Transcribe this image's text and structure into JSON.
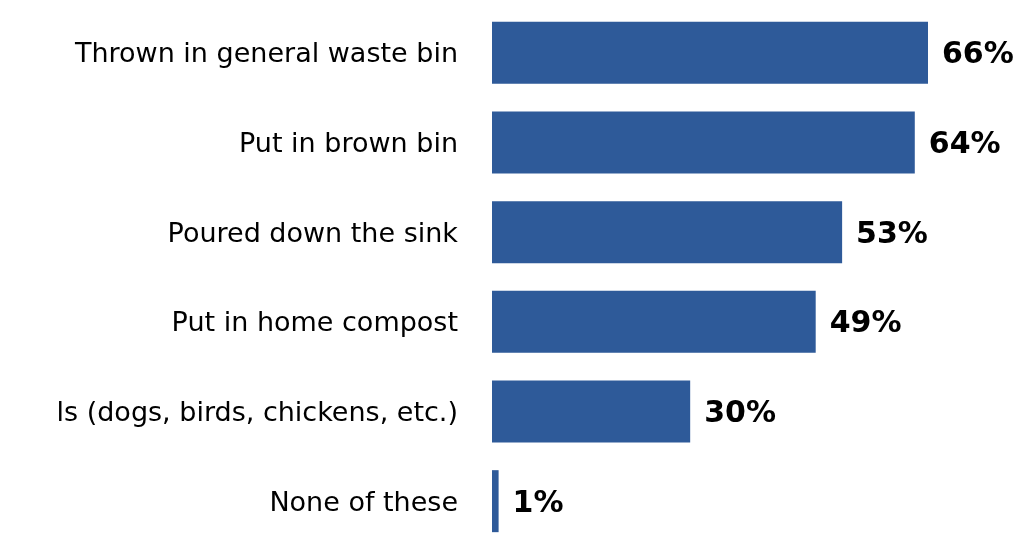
{
  "chart_data": {
    "type": "bar",
    "orientation": "horizontal",
    "categories": [
      "Thrown in general waste bin",
      "Put in brown bin",
      "Poured down the sink",
      "Put in home compost",
      "ls (dogs, birds, chickens, etc.)",
      "None of these"
    ],
    "values": [
      66,
      64,
      53,
      49,
      30,
      1
    ],
    "value_labels": [
      "66%",
      "64%",
      "53%",
      "49%",
      "30%",
      "1%"
    ],
    "color": "#2e5a99"
  }
}
